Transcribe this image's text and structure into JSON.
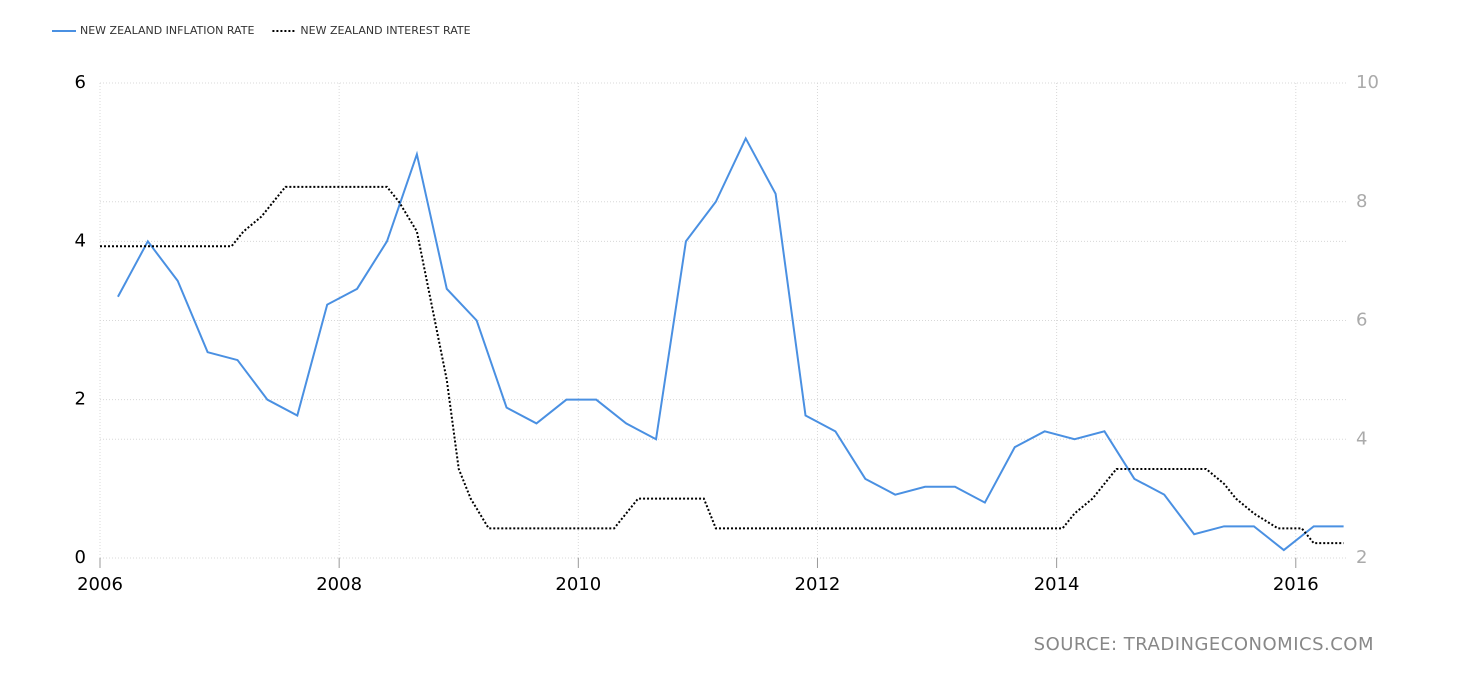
{
  "chart_data": {
    "type": "line",
    "source": "SOURCE: TRADINGECONOMICS.COM",
    "xlim": [
      2006,
      2016.42
    ],
    "xticks": [
      2006,
      2008,
      2010,
      2012,
      2014,
      2016
    ],
    "ylim": [
      0,
      6
    ],
    "yticks": [
      0,
      2,
      4,
      6
    ],
    "y2lim": [
      2,
      10
    ],
    "y2ticks": [
      2,
      4,
      6,
      8,
      10
    ],
    "grid": true,
    "series": [
      {
        "name": "NEW ZEALAND INFLATION RATE",
        "color": "#4a90e2",
        "axis": "y",
        "x": [
          2006.15,
          2006.4,
          2006.65,
          2006.9,
          2007.15,
          2007.4,
          2007.65,
          2007.9,
          2008.15,
          2008.4,
          2008.65,
          2008.9,
          2009.15,
          2009.4,
          2009.65,
          2009.9,
          2010.15,
          2010.4,
          2010.65,
          2010.9,
          2011.15,
          2011.4,
          2011.65,
          2011.9,
          2012.15,
          2012.4,
          2012.65,
          2012.9,
          2013.15,
          2013.4,
          2013.65,
          2013.9,
          2014.15,
          2014.4,
          2014.65,
          2014.9,
          2015.15,
          2015.4,
          2015.65,
          2015.9,
          2016.15,
          2016.4
        ],
        "values": [
          3.3,
          4.0,
          3.5,
          2.6,
          2.5,
          2.0,
          1.8,
          3.2,
          3.4,
          4.0,
          5.1,
          3.4,
          3.0,
          1.9,
          1.7,
          2.0,
          2.0,
          1.7,
          1.5,
          4.0,
          4.5,
          5.3,
          4.6,
          1.8,
          1.6,
          1.0,
          0.8,
          0.9,
          0.9,
          0.7,
          1.4,
          1.6,
          1.5,
          1.6,
          1.0,
          0.8,
          0.3,
          0.4,
          0.4,
          0.1,
          0.4,
          0.4
        ]
      },
      {
        "name": "NEW ZEALAND INTEREST RATE",
        "color": "#000000",
        "axis": "y2",
        "dashed": true,
        "x": [
          2006.0,
          2007.1,
          2007.2,
          2007.35,
          2007.45,
          2007.55,
          2008.4,
          2008.5,
          2008.65,
          2008.75,
          2008.9,
          2009.0,
          2009.1,
          2009.25,
          2010.3,
          2010.4,
          2010.5,
          2011.05,
          2011.15,
          2014.05,
          2014.15,
          2014.3,
          2014.4,
          2014.5,
          2015.25,
          2015.4,
          2015.5,
          2015.65,
          2015.85,
          2016.05,
          2016.15,
          2016.4
        ],
        "values": [
          7.25,
          7.25,
          7.5,
          7.75,
          8.0,
          8.25,
          8.25,
          8.0,
          7.5,
          6.5,
          5.0,
          3.5,
          3.0,
          2.5,
          2.5,
          2.75,
          3.0,
          3.0,
          2.5,
          2.5,
          2.75,
          3.0,
          3.25,
          3.5,
          3.5,
          3.25,
          3.0,
          2.75,
          2.5,
          2.5,
          2.25,
          2.25
        ]
      }
    ]
  }
}
